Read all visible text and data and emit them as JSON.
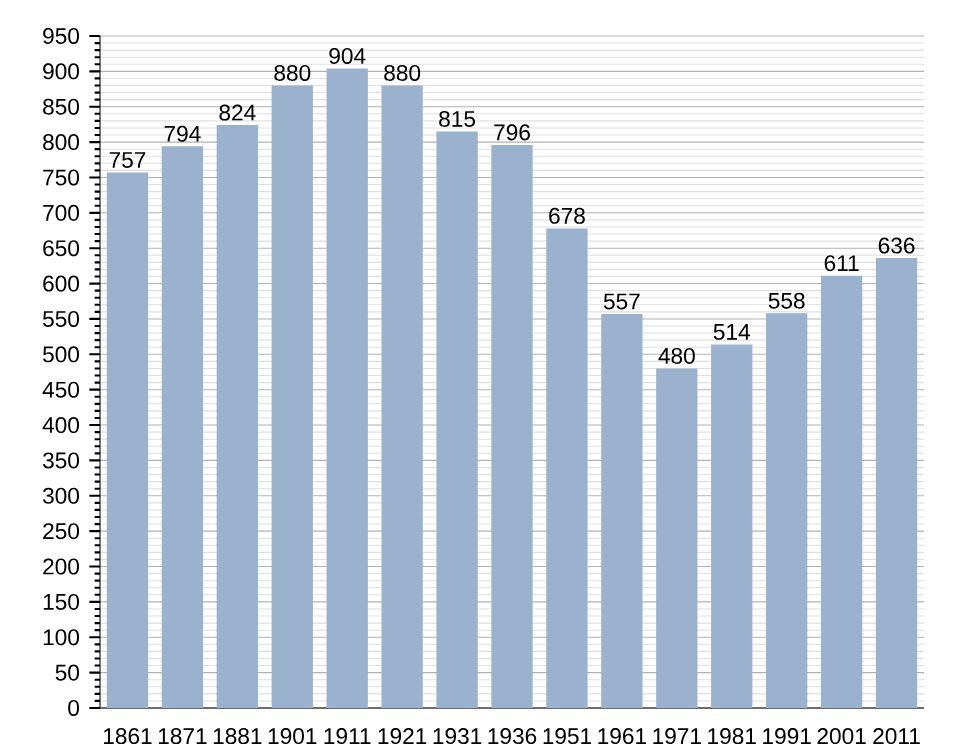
{
  "chart_data": {
    "type": "bar",
    "categories": [
      "1861",
      "1871",
      "1881",
      "1901",
      "1911",
      "1921",
      "1931",
      "1936",
      "1951",
      "1961",
      "1971",
      "1981",
      "1991",
      "2001",
      "2011"
    ],
    "values": [
      757,
      794,
      824,
      880,
      904,
      880,
      815,
      796,
      678,
      557,
      480,
      514,
      558,
      611,
      636
    ],
    "color": "#9bb2cf",
    "ylim": [
      0,
      950
    ],
    "yticks": [
      0,
      50,
      100,
      150,
      200,
      250,
      300,
      350,
      400,
      450,
      500,
      550,
      600,
      650,
      700,
      750,
      800,
      850,
      900,
      950
    ],
    "grid": "y",
    "data_labels": true
  }
}
